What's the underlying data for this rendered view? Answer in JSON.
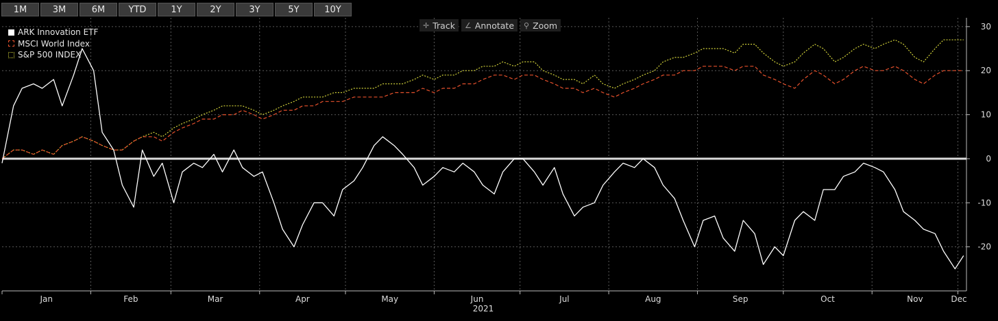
{
  "range_buttons": [
    "1M",
    "3M",
    "6M",
    "YTD",
    "1Y",
    "2Y",
    "3Y",
    "5Y",
    "10Y"
  ],
  "toolbar": {
    "track": "Track",
    "annotate": "Annotate",
    "zoom": "Zoom"
  },
  "chart_data": {
    "type": "line",
    "xlabel": "2021",
    "ylabel": "",
    "x_tick_labels": [
      "Jan",
      "Feb",
      "Mar",
      "Apr",
      "May",
      "Jun",
      "Jul",
      "Aug",
      "Sep",
      "Oct",
      "Nov",
      "Dec"
    ],
    "ylim": [
      -30,
      32
    ],
    "y_ticks": [
      30,
      20,
      10,
      0,
      -10,
      -20
    ],
    "grid": true,
    "legend": "top-left",
    "x": [
      "2021-01-01",
      "2021-01-05",
      "2021-01-08",
      "2021-01-12",
      "2021-01-15",
      "2021-01-19",
      "2021-01-22",
      "2021-01-26",
      "2021-01-29",
      "2021-02-02",
      "2021-02-05",
      "2021-02-09",
      "2021-02-12",
      "2021-02-16",
      "2021-02-19",
      "2021-02-23",
      "2021-02-26",
      "2021-03-02",
      "2021-03-05",
      "2021-03-09",
      "2021-03-12",
      "2021-03-16",
      "2021-03-19",
      "2021-03-23",
      "2021-03-26",
      "2021-03-30",
      "2021-04-02",
      "2021-04-06",
      "2021-04-09",
      "2021-04-13",
      "2021-04-16",
      "2021-04-20",
      "2021-04-23",
      "2021-04-27",
      "2021-04-30",
      "2021-05-04",
      "2021-05-07",
      "2021-05-11",
      "2021-05-14",
      "2021-05-18",
      "2021-05-21",
      "2021-05-25",
      "2021-05-28",
      "2021-06-01",
      "2021-06-04",
      "2021-06-08",
      "2021-06-11",
      "2021-06-15",
      "2021-06-18",
      "2021-06-22",
      "2021-06-25",
      "2021-06-29",
      "2021-07-02",
      "2021-07-06",
      "2021-07-09",
      "2021-07-13",
      "2021-07-16",
      "2021-07-20",
      "2021-07-23",
      "2021-07-27",
      "2021-07-30",
      "2021-08-03",
      "2021-08-06",
      "2021-08-10",
      "2021-08-13",
      "2021-08-17",
      "2021-08-20",
      "2021-08-24",
      "2021-08-27",
      "2021-08-31",
      "2021-09-03",
      "2021-09-07",
      "2021-09-10",
      "2021-09-14",
      "2021-09-17",
      "2021-09-21",
      "2021-09-24",
      "2021-09-28",
      "2021-10-01",
      "2021-10-05",
      "2021-10-08",
      "2021-10-12",
      "2021-10-15",
      "2021-10-19",
      "2021-10-22",
      "2021-10-26",
      "2021-10-29",
      "2021-11-02",
      "2021-11-05",
      "2021-11-09",
      "2021-11-12",
      "2021-11-16",
      "2021-11-19",
      "2021-11-23",
      "2021-11-26",
      "2021-11-30",
      "2021-12-03"
    ],
    "series": [
      {
        "name": "ARK Innovation ETF",
        "color": "#ffffff",
        "style": "solid",
        "values": [
          -1,
          12,
          16,
          17,
          16,
          18,
          12,
          19,
          25,
          20,
          6,
          2,
          -6,
          -11,
          2,
          -4,
          -1,
          -10,
          -3,
          -1,
          -2,
          1,
          -3,
          2,
          -2,
          -4,
          -3,
          -10,
          -16,
          -20,
          -15,
          -10,
          -10,
          -13,
          -7,
          -5,
          -2,
          3,
          5,
          3,
          1,
          -2,
          -6,
          -4,
          -2,
          -3,
          -1,
          -3,
          -6,
          -8,
          -3,
          0,
          0,
          -3,
          -6,
          -2,
          -8,
          -13,
          -11,
          -10,
          -6,
          -3,
          -1,
          -2,
          0,
          -2,
          -6,
          -9,
          -14,
          -20,
          -14,
          -13,
          -18,
          -21,
          -14,
          -17,
          -24,
          -20,
          -22,
          -14,
          -12,
          -14,
          -7,
          -7,
          -4,
          -3,
          -1,
          -2,
          -3,
          -7,
          -12,
          -14,
          -16,
          -17,
          -21,
          -25,
          -22
        ],
        "values_note_unused": false
      },
      {
        "name": "MSCI World Index",
        "color": "#e8512c",
        "style": "dashed",
        "values": [
          0,
          2,
          2,
          1,
          2,
          1,
          3,
          4,
          5,
          4,
          3,
          2,
          2,
          4,
          5,
          5,
          4,
          6,
          7,
          8,
          9,
          9,
          10,
          10,
          11,
          10,
          9,
          10,
          11,
          11,
          12,
          12,
          13,
          13,
          13,
          14,
          14,
          14,
          14,
          15,
          15,
          15,
          16,
          15,
          16,
          16,
          17,
          17,
          18,
          19,
          19,
          18,
          19,
          19,
          18,
          17,
          16,
          16,
          15,
          16,
          15,
          14,
          15,
          16,
          17,
          18,
          19,
          19,
          20,
          20,
          21,
          21,
          21,
          20,
          21,
          21,
          19,
          18,
          17,
          16,
          18,
          20,
          19,
          17,
          18,
          20,
          21,
          20,
          20,
          21,
          20,
          18,
          17,
          19,
          20,
          20,
          20
        ],
        "values_note_unused": false
      },
      {
        "name": "S&P 500 INDEX",
        "color": "#d4d43a",
        "style": "dotted",
        "values": [
          0,
          2,
          2,
          1,
          2,
          1,
          3,
          4,
          5,
          4,
          3,
          2,
          2,
          4,
          5,
          6,
          5,
          7,
          8,
          9,
          10,
          11,
          12,
          12,
          12,
          11,
          10,
          11,
          12,
          13,
          14,
          14,
          14,
          15,
          15,
          16,
          16,
          16,
          17,
          17,
          17,
          18,
          19,
          18,
          19,
          19,
          20,
          20,
          21,
          21,
          22,
          21,
          22,
          22,
          20,
          19,
          18,
          18,
          17,
          19,
          17,
          16,
          17,
          18,
          19,
          20,
          22,
          23,
          23,
          24,
          25,
          25,
          25,
          24,
          26,
          26,
          24,
          22,
          21,
          22,
          24,
          26,
          25,
          22,
          23,
          25,
          26,
          25,
          26,
          27,
          26,
          23,
          22,
          25,
          27,
          27,
          27
        ],
        "values_note_unused": false
      }
    ]
  }
}
